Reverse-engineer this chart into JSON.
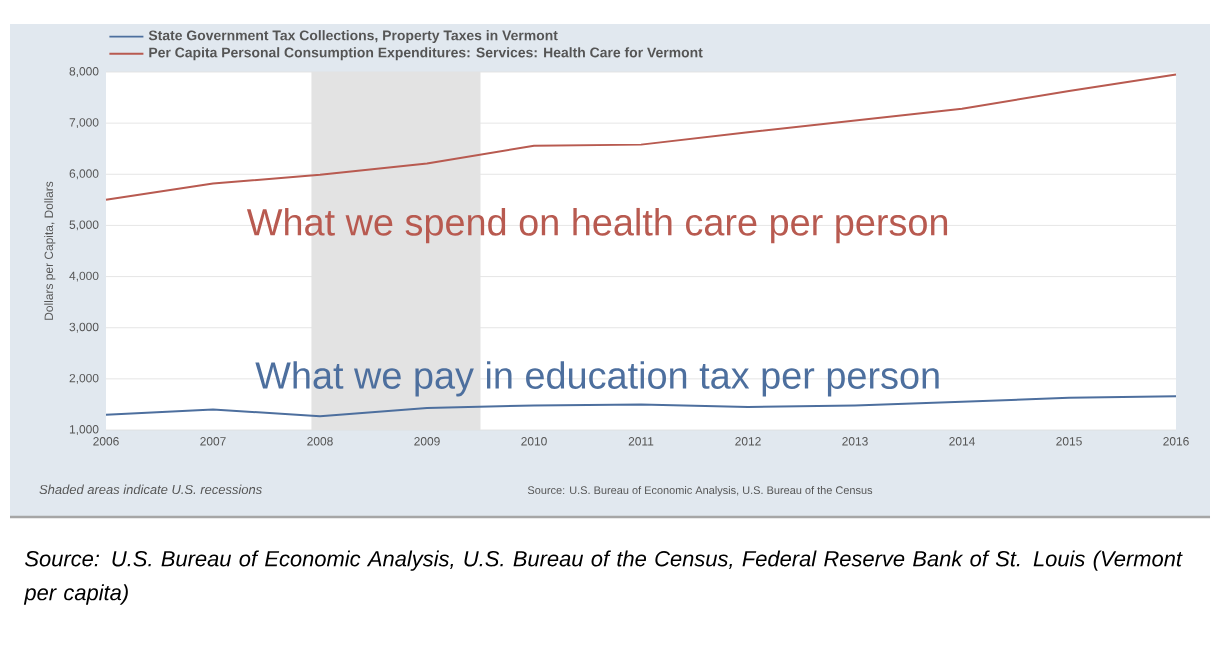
{
  "chart_data": {
    "type": "line",
    "x": [
      2006,
      2007,
      2008,
      2009,
      2010,
      2011,
      2012,
      2013,
      2014,
      2015,
      2016
    ],
    "series": [
      {
        "name": "State Government Tax Collections, Property Taxes in Vermont",
        "color": "#4d6f9e",
        "values": [
          1300,
          1400,
          1270,
          1430,
          1480,
          1500,
          1450,
          1480,
          1550,
          1630,
          1660
        ]
      },
      {
        "name": "Per Capita Personal Consumption Expenditures: Services: Health Care for Vermont",
        "color": "#b85a50",
        "values": [
          5500,
          5820,
          5990,
          6210,
          6560,
          6580,
          6820,
          7050,
          7280,
          7630,
          7950
        ]
      }
    ],
    "ylabel": "Dollars per Capita, Dollars",
    "xlim": [
      2006,
      2016
    ],
    "xticks": [
      2006,
      2007,
      2008,
      2009,
      2010,
      2011,
      2012,
      2013,
      2014,
      2015,
      2016
    ],
    "ylim": [
      1000,
      8000
    ],
    "yticks": [
      {
        "value": 1000,
        "label": "1,000"
      },
      {
        "value": 2000,
        "label": "2,000"
      },
      {
        "value": 3000,
        "label": "3,000"
      },
      {
        "value": 4000,
        "label": "4,000"
      },
      {
        "value": 5000,
        "label": "5,000"
      },
      {
        "value": 6000,
        "label": "6,000"
      },
      {
        "value": 7000,
        "label": "7,000"
      },
      {
        "value": 8000,
        "label": "8,000"
      }
    ],
    "bands": [
      {
        "axis": "x",
        "from": 2007.92,
        "to": 2009.5,
        "color": "#e3e3e3"
      }
    ],
    "grid": "y",
    "legend": "top left",
    "marker": "none",
    "line_style": "solid",
    "annotations": [
      "What we spend on health care per person",
      "What we pay in education tax per person",
      "Shaded areas indicate U.S. recessions",
      "Source: U.S. Bureau of Economic Analysis, U.S. Bureau of the Census",
      "Source:  U.S. Bureau of Economic Analysis, U.S. Bureau of the Census, Federal Reserve Bank of St. Louis  (Vermont per capita)"
    ]
  }
}
